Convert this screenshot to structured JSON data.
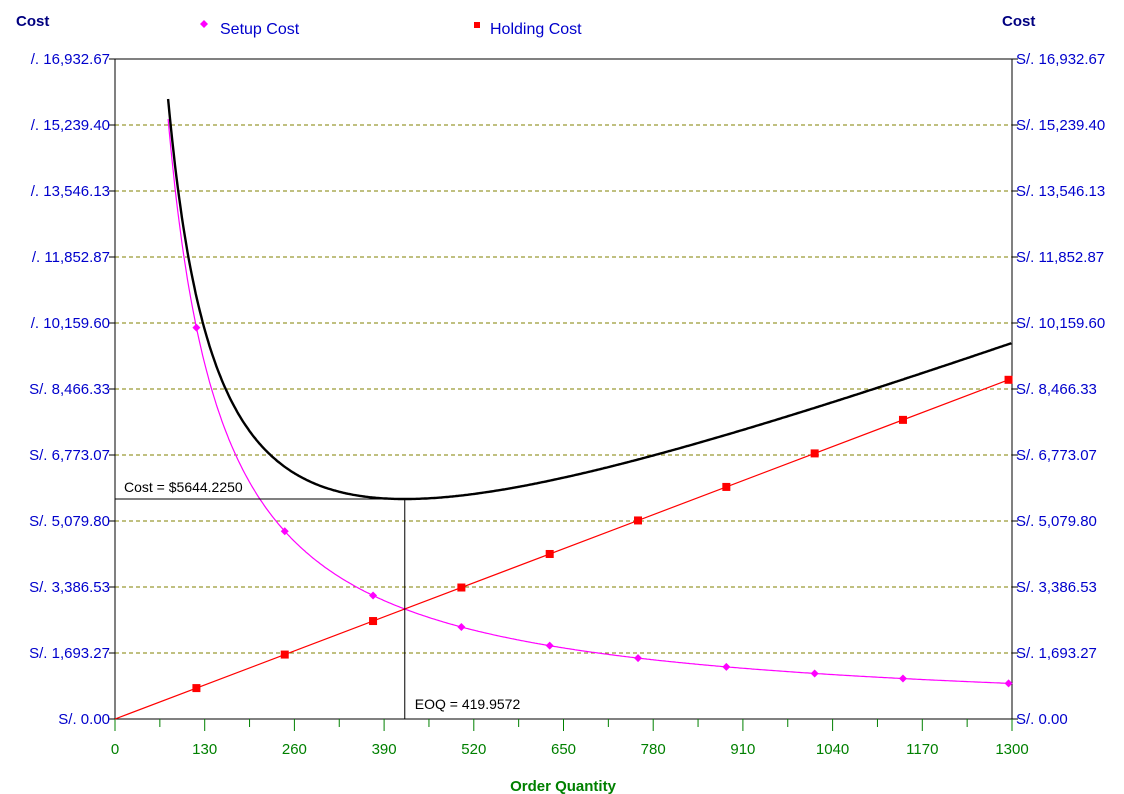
{
  "chart_data": {
    "type": "line",
    "ylabel_left": "Cost",
    "ylabel_right": "Cost",
    "xlabel": "Order Quantity",
    "xlim": [
      0,
      1300
    ],
    "ylim": [
      0,
      16932.67
    ],
    "x_ticks": [
      "0",
      "130",
      "260",
      "390",
      "520",
      "650",
      "780",
      "910",
      "1040",
      "1170",
      "1300"
    ],
    "y_tick_values": [
      0,
      1693.27,
      3386.53,
      5079.8,
      6773.07,
      8466.33,
      10159.6,
      11852.87,
      13546.13,
      15239.4,
      16932.67
    ],
    "y_ticks_left": [
      "S/. 0.00",
      "S/. 1,693.27",
      "S/. 3,386.53",
      "S/. 5,079.80",
      "S/. 6,773.07",
      "S/. 8,466.33",
      "/. 10,159.60",
      "/. 11,852.87",
      "/. 13,546.13",
      "/. 15,239.40",
      "/. 16,932.67"
    ],
    "y_ticks_right": [
      "S/. 0.00",
      "S/. 1,693.27",
      "S/. 3,386.53",
      "S/. 5,079.80",
      "S/. 6,773.07",
      "S/. 8,466.33",
      "S/. 10,159.60",
      "S/. 11,852.87",
      "S/. 13,546.13",
      "S/. 15,239.40",
      "S/. 16,932.67"
    ],
    "grid": true,
    "legend_position": "top",
    "series": [
      {
        "name": "Setup Cost",
        "color": "#ff00ff",
        "marker": "diamond",
        "setup_constant": 1185012,
        "x_start": 77,
        "markers_x": [
          118,
          246,
          374,
          502,
          630,
          758,
          886,
          1014,
          1142,
          1295
        ]
      },
      {
        "name": "Holding Cost",
        "color": "#ff0000",
        "marker": "square",
        "slope": 6.72,
        "markers_x": [
          118,
          246,
          374,
          502,
          630,
          758,
          886,
          1014,
          1142,
          1295
        ]
      },
      {
        "name": "",
        "color": "#000000",
        "marker": "none",
        "x_start": 77
      }
    ],
    "annotations": {
      "eoq_x": 419.9572,
      "min_cost": 5644.225,
      "cost_label": "Cost = $5644.2250",
      "eoq_label": "EOQ = 419.9572"
    },
    "colors": {
      "grid": "#808000",
      "y_tick_text": "#0000cc",
      "x_tick_text": "#008000",
      "axis_title_y": "#000080",
      "axis_title_x": "#008000"
    }
  }
}
